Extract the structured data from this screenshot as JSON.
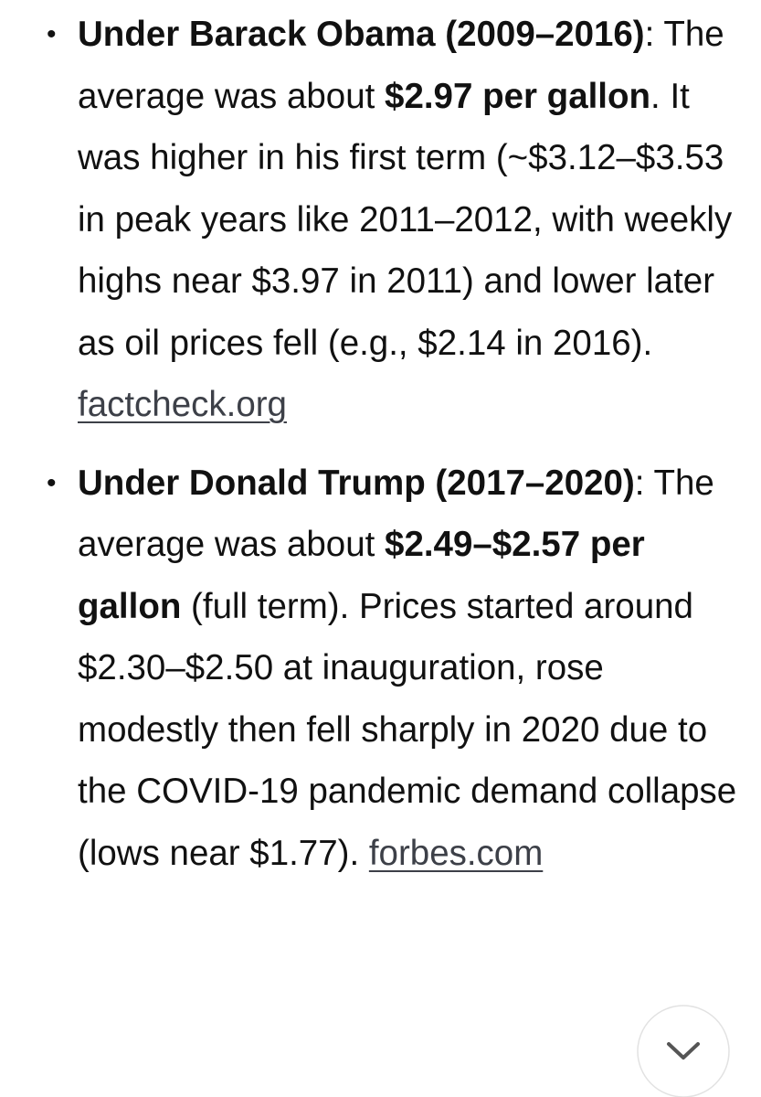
{
  "items": [
    {
      "heading": "Under Barack Obama (2009–2016)",
      "intro": ": The average was about ",
      "highlight": "$2.97 per gallon",
      "text": ". It was higher in his first term (~$3.12–$3.53 in peak years like 2011–2012, with weekly highs near $3.97 in 2011) and lower later as oil prices fell (e.g., $2.14 in 2016). ",
      "link": "factcheck.org"
    },
    {
      "heading": "Under Donald Trump (2017–2020)",
      "intro": ": The average was about ",
      "highlight": "$2.49–$2.57 per gallon",
      "text": " (full term). Prices started around $2.30–$2.50 at inauguration, rose modestly then fell sharply in 2020 due to the COVID-19 pandemic demand collapse (lows near $1.77). ",
      "link": "forbes.com"
    }
  ]
}
